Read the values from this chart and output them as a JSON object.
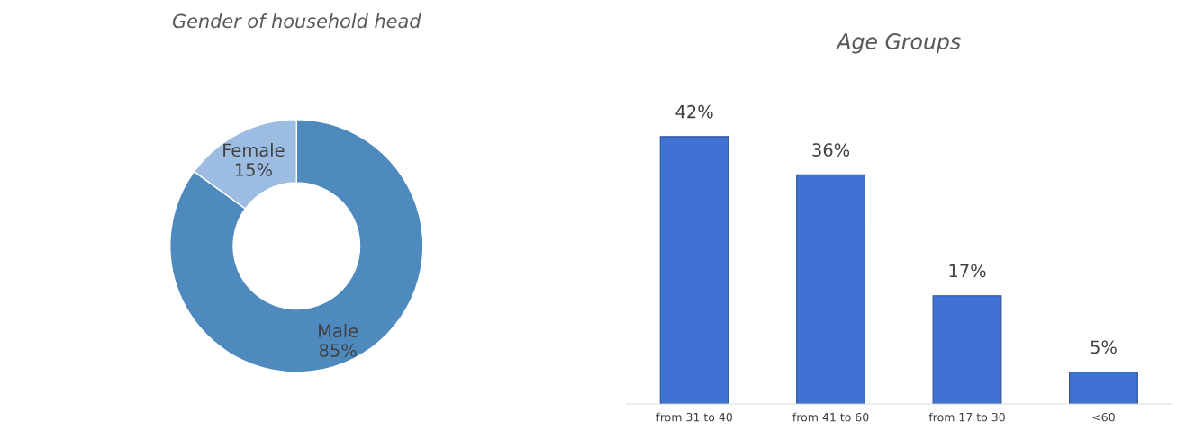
{
  "chart_data": [
    {
      "type": "donut",
      "title": "Gender of household head",
      "categories": [
        "Male",
        "Female"
      ],
      "values": [
        85,
        15
      ],
      "value_labels": [
        "85%",
        "15%"
      ],
      "colors": [
        "#4f8abf",
        "#9dbce2"
      ]
    },
    {
      "type": "bar",
      "title": "Age Groups",
      "categories": [
        "from 31 to 40",
        "from 41 to 60",
        "from 17 to 30",
        "<60"
      ],
      "values": [
        42,
        36,
        17,
        5
      ],
      "value_labels": [
        "42%",
        "36%",
        "17%",
        "5%"
      ],
      "color": "#3f72d2",
      "grid": false
    }
  ]
}
